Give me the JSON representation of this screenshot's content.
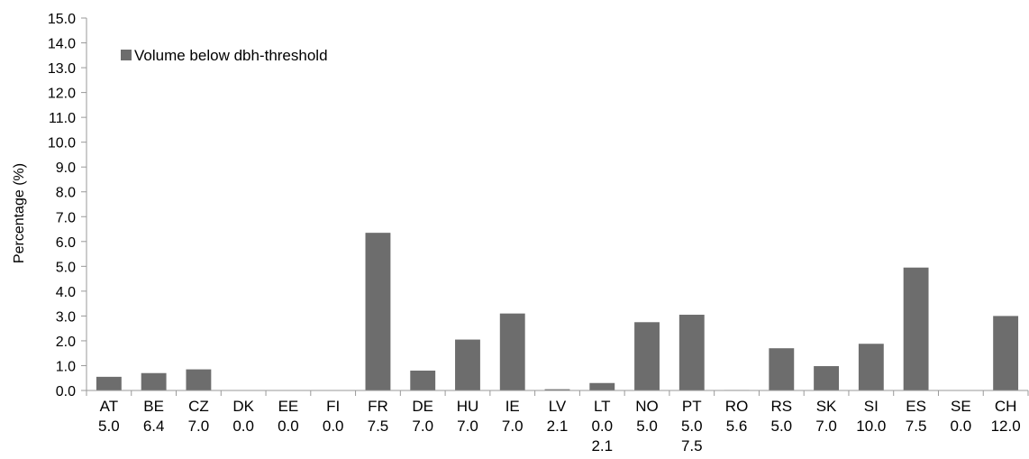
{
  "chart_data": {
    "type": "bar",
    "ylabel": "Percentage (%)",
    "ylim": [
      0,
      15
    ],
    "yticks": [
      "0.0",
      "1.0",
      "2.0",
      "3.0",
      "4.0",
      "5.0",
      "6.0",
      "7.0",
      "8.0",
      "9.0",
      "10.0",
      "11.0",
      "12.0",
      "13.0",
      "14.0",
      "15.0"
    ],
    "grid": false,
    "legend_position": "top-left",
    "categories": [
      {
        "code": "AT",
        "thresholds": [
          "5.0"
        ]
      },
      {
        "code": "BE",
        "thresholds": [
          "6.4"
        ]
      },
      {
        "code": "CZ",
        "thresholds": [
          "7.0"
        ]
      },
      {
        "code": "DK",
        "thresholds": [
          "0.0"
        ]
      },
      {
        "code": "EE",
        "thresholds": [
          "0.0"
        ]
      },
      {
        "code": "FI",
        "thresholds": [
          "0.0"
        ]
      },
      {
        "code": "FR",
        "thresholds": [
          "7.5"
        ]
      },
      {
        "code": "DE",
        "thresholds": [
          "7.0"
        ]
      },
      {
        "code": "HU",
        "thresholds": [
          "7.0"
        ]
      },
      {
        "code": "IE",
        "thresholds": [
          "7.0"
        ]
      },
      {
        "code": "LV",
        "thresholds": [
          "2.1"
        ]
      },
      {
        "code": "LT",
        "thresholds": [
          "0.0",
          "2.1"
        ]
      },
      {
        "code": "NO",
        "thresholds": [
          "5.0"
        ]
      },
      {
        "code": "PT",
        "thresholds": [
          "5.0",
          "7.5"
        ]
      },
      {
        "code": "RO",
        "thresholds": [
          "5.6"
        ]
      },
      {
        "code": "RS",
        "thresholds": [
          "5.0"
        ]
      },
      {
        "code": "SK",
        "thresholds": [
          "7.0"
        ]
      },
      {
        "code": "SI",
        "thresholds": [
          "10.0"
        ]
      },
      {
        "code": "ES",
        "thresholds": [
          "7.5"
        ]
      },
      {
        "code": "SE",
        "thresholds": [
          "0.0"
        ]
      },
      {
        "code": "CH",
        "thresholds": [
          "12.0"
        ]
      }
    ],
    "series": [
      {
        "name": "Volume below dbh-threshold",
        "color": "#6d6d6d",
        "values": [
          0.55,
          0.7,
          0.85,
          0.0,
          0.0,
          0.0,
          6.35,
          0.8,
          2.05,
          3.1,
          0.05,
          0.3,
          2.75,
          3.05,
          0.02,
          1.7,
          0.98,
          1.88,
          4.95,
          0.0,
          3.0
        ]
      }
    ]
  }
}
